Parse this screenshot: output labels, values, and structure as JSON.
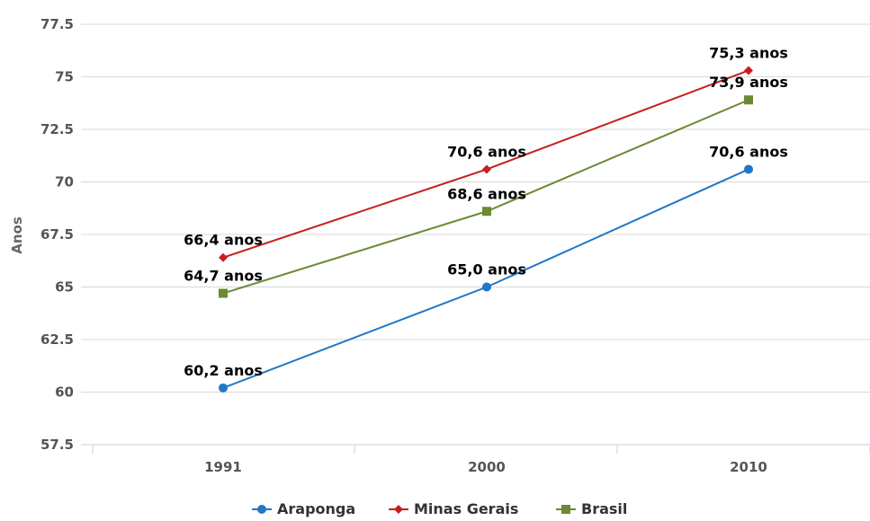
{
  "chart_data": {
    "type": "line",
    "title": "",
    "xlabel": "",
    "ylabel": "Anos",
    "categories": [
      "1991",
      "2000",
      "2010"
    ],
    "ylim": [
      57.5,
      77.5
    ],
    "yticks": [
      "57.5",
      "60",
      "62.5",
      "65",
      "67.5",
      "70",
      "72.5",
      "75",
      "77.5"
    ],
    "grid": true,
    "legend_position": "bottom-center",
    "series": [
      {
        "name": "Araponga",
        "color": "#1f78c8",
        "marker": "circle",
        "values": [
          60.2,
          65.0,
          70.6
        ],
        "labels": [
          "60,2 anos",
          "65,0 anos",
          "70,6 anos"
        ]
      },
      {
        "name": "Minas Gerais",
        "color": "#c81e1e",
        "marker": "diamond",
        "values": [
          66.4,
          70.6,
          75.3
        ],
        "labels": [
          "66,4 anos",
          "70,6 anos",
          "75,3 anos"
        ]
      },
      {
        "name": "Brasil",
        "color": "#6b8a32",
        "marker": "square",
        "values": [
          64.7,
          68.6,
          73.9
        ],
        "labels": [
          "64,7 anos",
          "68,6 anos",
          "73,9 anos"
        ]
      }
    ]
  }
}
